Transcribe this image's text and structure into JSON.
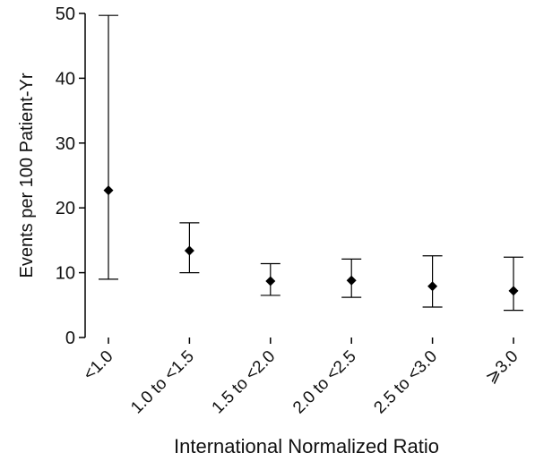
{
  "chart_data": {
    "type": "scatter",
    "title": "",
    "xlabel": "International Normalized Ratio",
    "ylabel": "Events per 100 Patient-Yr",
    "ylim": [
      0,
      50
    ],
    "yticks": [
      "0",
      "10",
      "20",
      "30",
      "40",
      "50"
    ],
    "grid": false,
    "categories": [
      "<1.0",
      "1.0 to <1.5",
      "1.5 to <2.0",
      "2.0 to <2.5",
      "2.5 to <3.0",
      "⩾3.0"
    ],
    "series": [
      {
        "values": [
          22.7,
          13.4,
          8.7,
          8.8,
          7.9,
          7.2
        ],
        "lower": [
          9.0,
          10.0,
          6.5,
          6.2,
          4.7,
          4.2
        ],
        "upper": [
          49.7,
          17.7,
          11.4,
          12.1,
          12.6,
          12.4
        ]
      }
    ]
  }
}
